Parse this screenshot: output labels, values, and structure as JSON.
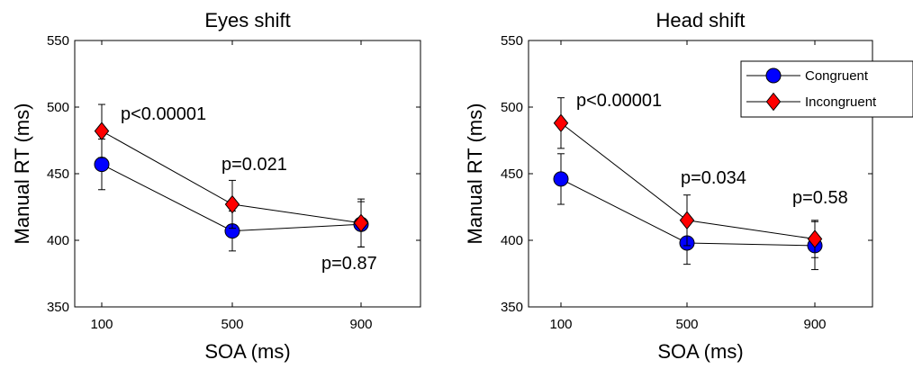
{
  "chart_data": [
    {
      "type": "line",
      "title": "Eyes shift",
      "xlabel": "SOA (ms)",
      "ylabel": "Manual RT (ms)",
      "categories": [
        "100",
        "500",
        "900"
      ],
      "ylim": [
        350,
        550
      ],
      "yticks": [
        350,
        400,
        450,
        500,
        550
      ],
      "legend": false,
      "series": [
        {
          "name": "Congruent",
          "marker": "circle",
          "color": "#0000ff",
          "values": [
            457,
            407,
            412
          ],
          "errors": [
            19,
            15,
            17
          ]
        },
        {
          "name": "Incongruent",
          "marker": "diamond",
          "color": "#ff0000",
          "values": [
            482,
            427,
            413
          ],
          "errors": [
            20,
            18,
            18
          ]
        }
      ],
      "annotations": [
        "p<0.00001",
        "p=0.021",
        "p=0.87"
      ]
    },
    {
      "type": "line",
      "title": "Head shift",
      "xlabel": "SOA (ms)",
      "ylabel": "Manual RT (ms)",
      "categories": [
        "100",
        "500",
        "900"
      ],
      "ylim": [
        350,
        550
      ],
      "yticks": [
        350,
        400,
        450,
        500,
        550
      ],
      "legend": "top-right",
      "series": [
        {
          "name": "Congruent",
          "marker": "circle",
          "color": "#0000ff",
          "values": [
            446,
            398,
            396
          ],
          "errors": [
            19,
            16,
            18
          ]
        },
        {
          "name": "Incongruent",
          "marker": "diamond",
          "color": "#ff0000",
          "values": [
            488,
            415,
            401
          ],
          "errors": [
            19,
            19,
            14
          ]
        }
      ],
      "annotations": [
        "p<0.00001",
        "p=0.034",
        "p=0.58"
      ]
    }
  ]
}
